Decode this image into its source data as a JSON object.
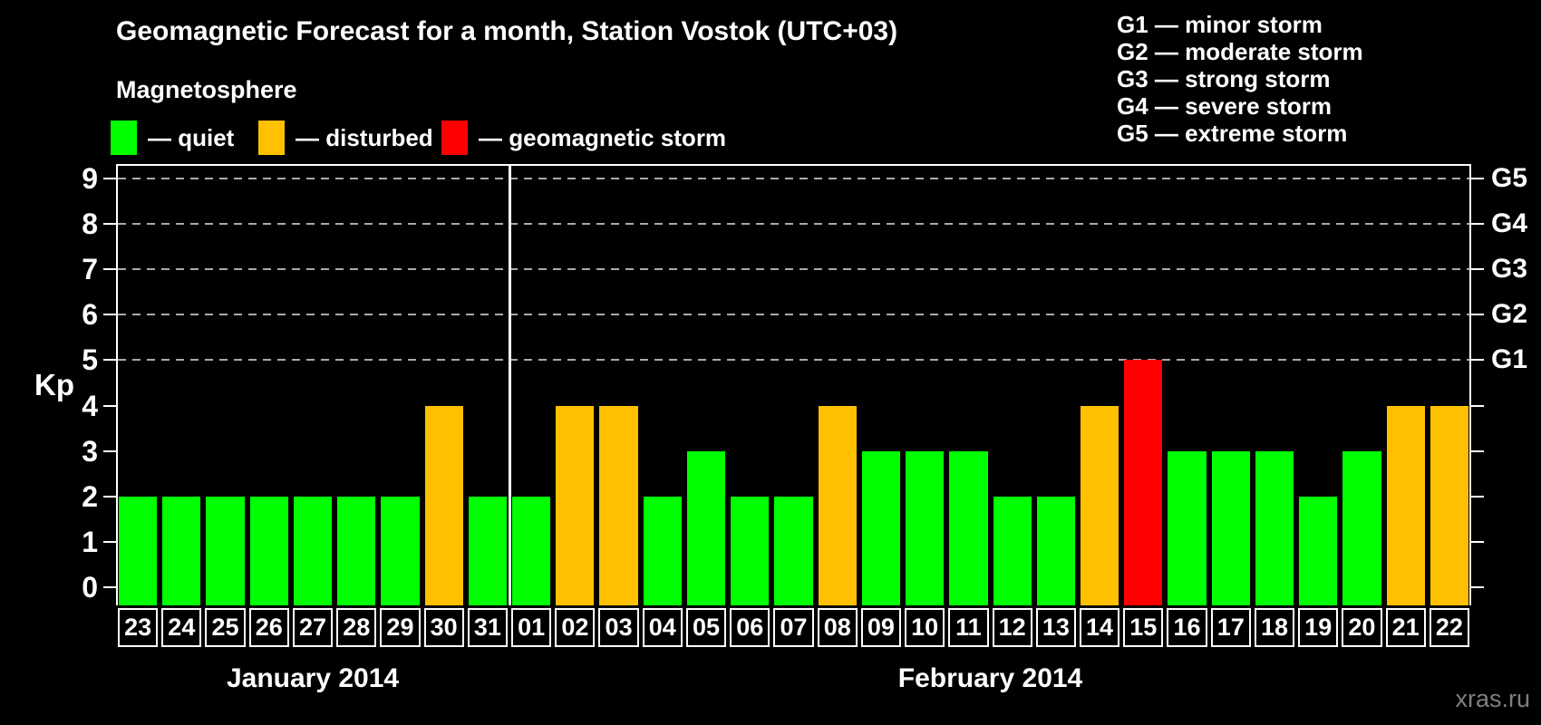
{
  "title": "Geomagnetic Forecast for a month, Station Vostok (UTC+03)",
  "subtitle": "Magnetosphere",
  "legend": {
    "quiet": {
      "label": "— quiet",
      "status": "quiet"
    },
    "disturbed": {
      "label": "— disturbed",
      "status": "disturbed"
    },
    "storm": {
      "label": "— geomagnetic storm",
      "status": "storm"
    }
  },
  "g_scale_legend": [
    "G1 — minor storm",
    "G2 — moderate storm",
    "G3 — strong storm",
    "G4 — severe storm",
    "G5 — extreme storm"
  ],
  "watermark": "xras.ru",
  "chart_data": {
    "type": "bar",
    "ylabel": "Kp",
    "ylim": [
      0,
      9
    ],
    "y_ticks": [
      0,
      1,
      2,
      3,
      4,
      5,
      6,
      7,
      8,
      9
    ],
    "gridlines_at": [
      5,
      6,
      7,
      8,
      9
    ],
    "grid_style": "dashed",
    "legend_position": "top",
    "right_axis_labels": [
      {
        "kp": 5,
        "label": "G1"
      },
      {
        "kp": 6,
        "label": "G2"
      },
      {
        "kp": 7,
        "label": "G3"
      },
      {
        "kp": 8,
        "label": "G4"
      },
      {
        "kp": 9,
        "label": "G5"
      }
    ],
    "status_colors": {
      "quiet": "#00ff00",
      "disturbed": "#ffc000",
      "storm": "#ff0000"
    },
    "axis_color": "#ffffff",
    "grid_color": "#aaaaaa",
    "months": [
      {
        "label": "January 2014",
        "days": 9
      },
      {
        "label": "February 2014",
        "days": 22
      }
    ],
    "bars": [
      {
        "day": "23",
        "kp": 2,
        "status": "quiet"
      },
      {
        "day": "24",
        "kp": 2,
        "status": "quiet"
      },
      {
        "day": "25",
        "kp": 2,
        "status": "quiet"
      },
      {
        "day": "26",
        "kp": 2,
        "status": "quiet"
      },
      {
        "day": "27",
        "kp": 2,
        "status": "quiet"
      },
      {
        "day": "28",
        "kp": 2,
        "status": "quiet"
      },
      {
        "day": "29",
        "kp": 2,
        "status": "quiet"
      },
      {
        "day": "30",
        "kp": 4,
        "status": "disturbed"
      },
      {
        "day": "31",
        "kp": 2,
        "status": "quiet"
      },
      {
        "day": "01",
        "kp": 2,
        "status": "quiet"
      },
      {
        "day": "02",
        "kp": 4,
        "status": "disturbed"
      },
      {
        "day": "03",
        "kp": 4,
        "status": "disturbed"
      },
      {
        "day": "04",
        "kp": 2,
        "status": "quiet"
      },
      {
        "day": "05",
        "kp": 3,
        "status": "quiet"
      },
      {
        "day": "06",
        "kp": 2,
        "status": "quiet"
      },
      {
        "day": "07",
        "kp": 2,
        "status": "quiet"
      },
      {
        "day": "08",
        "kp": 4,
        "status": "disturbed"
      },
      {
        "day": "09",
        "kp": 3,
        "status": "quiet"
      },
      {
        "day": "10",
        "kp": 3,
        "status": "quiet"
      },
      {
        "day": "11",
        "kp": 3,
        "status": "quiet"
      },
      {
        "day": "12",
        "kp": 2,
        "status": "quiet"
      },
      {
        "day": "13",
        "kp": 2,
        "status": "quiet"
      },
      {
        "day": "14",
        "kp": 4,
        "status": "disturbed"
      },
      {
        "day": "15",
        "kp": 5,
        "status": "storm"
      },
      {
        "day": "16",
        "kp": 3,
        "status": "quiet"
      },
      {
        "day": "17",
        "kp": 3,
        "status": "quiet"
      },
      {
        "day": "18",
        "kp": 3,
        "status": "quiet"
      },
      {
        "day": "19",
        "kp": 2,
        "status": "quiet"
      },
      {
        "day": "20",
        "kp": 3,
        "status": "quiet"
      },
      {
        "day": "21",
        "kp": 4,
        "status": "disturbed"
      },
      {
        "day": "22",
        "kp": 4,
        "status": "disturbed"
      }
    ]
  }
}
